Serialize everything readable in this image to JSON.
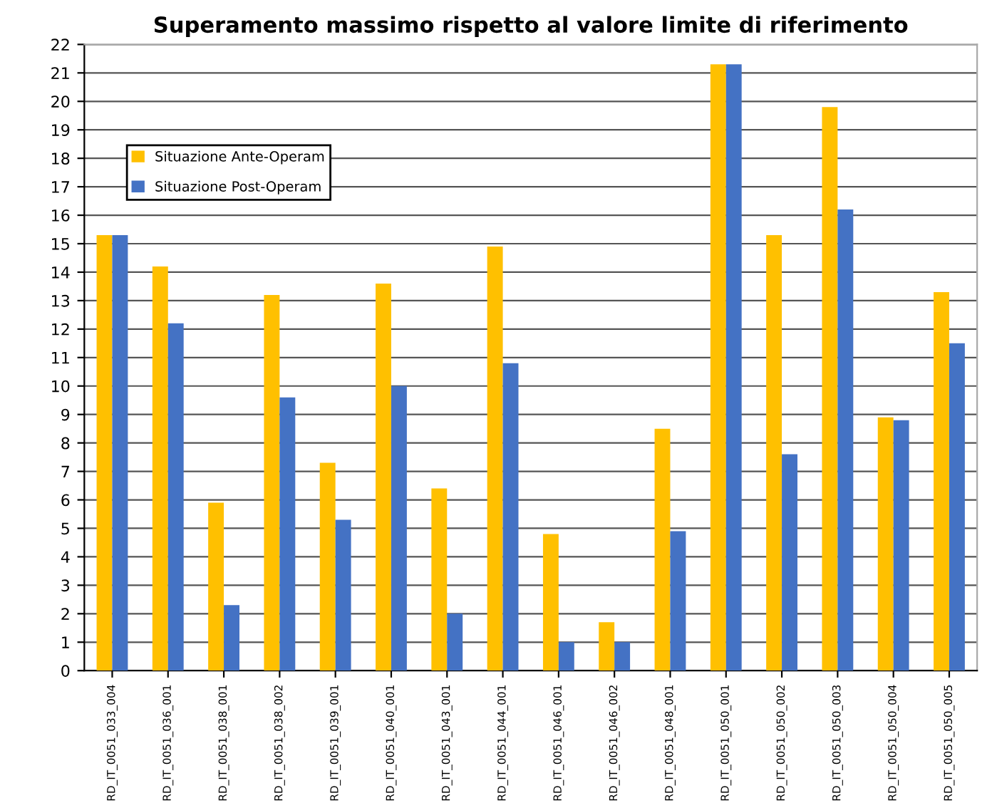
{
  "chart_data": {
    "type": "bar",
    "title": "Superamento massimo rispetto al valore limite di riferimento",
    "categories": [
      "RD_IT_0051_033_004",
      "RD_IT_0051_036_001",
      "RD_IT_0051_038_001",
      "RD_IT_0051_038_002",
      "RD_IT_0051_039_001",
      "RD_IT_0051_040_001",
      "RD_IT_0051_043_001",
      "RD_IT_0051_044_001",
      "RD_IT_0051_046_001",
      "RD_IT_0051_046_002",
      "RD_IT_0051_048_001",
      "RD_IT_0051_050_001",
      "RD_IT_0051_050_002",
      "RD_IT_0051_050_003",
      "RD_IT_0051_050_004",
      "RD_IT_0051_050_005"
    ],
    "series": [
      {
        "name": "Situazione Ante-Operam",
        "color": "#ffc000",
        "values": [
          15.3,
          14.2,
          5.9,
          13.2,
          7.3,
          13.6,
          6.4,
          14.9,
          4.8,
          1.7,
          8.5,
          21.3,
          15.3,
          19.8,
          8.9,
          13.3
        ]
      },
      {
        "name": "Situazione Post-Operam",
        "color": "#4472c4",
        "values": [
          15.3,
          12.2,
          2.3,
          9.6,
          5.3,
          10.0,
          2.0,
          10.8,
          1.0,
          1.0,
          4.9,
          21.3,
          7.6,
          16.2,
          8.8,
          11.5
        ]
      }
    ],
    "ylim": [
      0,
      22
    ],
    "yticks": [
      0,
      1,
      2,
      3,
      4,
      5,
      6,
      7,
      8,
      9,
      10,
      11,
      12,
      13,
      14,
      15,
      16,
      17,
      18,
      19,
      20,
      21,
      22
    ],
    "grid": "y",
    "legend": "top left"
  }
}
